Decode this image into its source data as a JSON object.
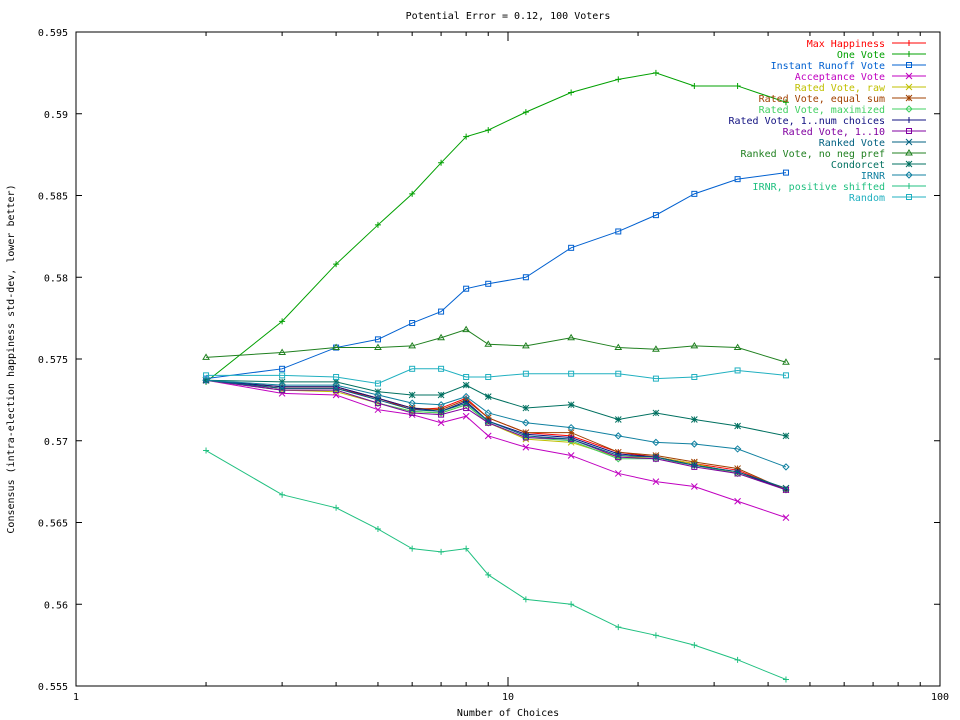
{
  "chart_data": {
    "type": "line",
    "title": "Potential Error = 0.12, 100 Voters",
    "xlabel": "Number of Choices",
    "ylabel": "Consensus (intra-election happiness std-dev, lower better)",
    "x_scale": "log",
    "xlim": [
      1,
      100
    ],
    "ylim": [
      0.555,
      0.595
    ],
    "x_ticks": [
      1,
      10,
      100
    ],
    "x_tick_labels": [
      "1",
      "10",
      "100"
    ],
    "y_ticks": [
      0.555,
      0.56,
      0.565,
      0.57,
      0.575,
      0.58,
      0.585,
      0.59,
      0.595
    ],
    "y_tick_labels": [
      "0.555",
      "0.56",
      "0.565",
      "0.57",
      "0.575",
      "0.58",
      "0.585",
      "0.59",
      "0.595"
    ],
    "grid": false,
    "legend_position": "top-right",
    "x": [
      2,
      3,
      4,
      5,
      6,
      7,
      8,
      9,
      11,
      14,
      18,
      22,
      27,
      34,
      44
    ],
    "series": [
      {
        "name": "Max Happiness",
        "color": "#ff0000",
        "marker": "plus",
        "values": [
          0.5737,
          0.5732,
          0.5732,
          0.5726,
          0.5719,
          0.572,
          0.5726,
          0.5714,
          0.5705,
          0.5703,
          0.5693,
          0.569,
          0.5686,
          0.5682,
          0.567
        ]
      },
      {
        "name": "One Vote",
        "color": "#00a000",
        "marker": "plus",
        "values": [
          0.5736,
          0.5773,
          0.5808,
          0.5832,
          0.5851,
          0.587,
          0.5886,
          0.589,
          0.5901,
          0.5913,
          0.5921,
          0.5925,
          0.5917,
          0.5917,
          0.5907
        ]
      },
      {
        "name": "Instant Runoff Vote",
        "color": "#0060d0",
        "marker": "square",
        "values": [
          0.5738,
          0.5744,
          0.5757,
          0.5762,
          0.5772,
          0.5779,
          0.5793,
          0.5796,
          0.58,
          0.5818,
          0.5828,
          0.5838,
          0.5851,
          0.586,
          0.5864
        ]
      },
      {
        "name": "Acceptance Vote",
        "color": "#c000c0",
        "marker": "x",
        "values": [
          0.5737,
          0.5729,
          0.5728,
          0.5719,
          0.5716,
          0.5711,
          0.5715,
          0.5703,
          0.5696,
          0.5691,
          0.568,
          0.5675,
          0.5672,
          0.5663,
          0.5653
        ]
      },
      {
        "name": "Rated Vote, raw",
        "color": "#c0c000",
        "marker": "x",
        "values": [
          0.5737,
          0.5731,
          0.573,
          0.5723,
          0.5718,
          0.5717,
          0.5722,
          0.5711,
          0.5701,
          0.5699,
          0.569,
          0.569,
          0.5686,
          0.568,
          0.5671
        ]
      },
      {
        "name": "Rated Vote, equal sum",
        "color": "#a04000",
        "marker": "star",
        "values": [
          0.5737,
          0.5733,
          0.5733,
          0.5726,
          0.572,
          0.5719,
          0.5725,
          0.5714,
          0.5705,
          0.5705,
          0.5693,
          0.5691,
          0.5687,
          0.5683,
          0.567
        ]
      },
      {
        "name": "Rated Vote, maximized",
        "color": "#40d060",
        "marker": "diamond",
        "values": [
          0.5737,
          0.5731,
          0.5731,
          0.5723,
          0.5718,
          0.5717,
          0.5722,
          0.5711,
          0.5702,
          0.57,
          0.5689,
          0.5689,
          0.5685,
          0.568,
          0.567
        ]
      },
      {
        "name": "Rated Vote, 1..num choices",
        "color": "#101080",
        "marker": "plus",
        "values": [
          0.5737,
          0.5733,
          0.5733,
          0.5726,
          0.572,
          0.5718,
          0.5724,
          0.5712,
          0.5704,
          0.5702,
          0.5692,
          0.569,
          0.5685,
          0.5681,
          0.567
        ]
      },
      {
        "name": "Rated Vote, 1..10",
        "color": "#8000a0",
        "marker": "square",
        "values": [
          0.5737,
          0.5731,
          0.5731,
          0.5723,
          0.5717,
          0.5716,
          0.572,
          0.5711,
          0.5702,
          0.5701,
          0.569,
          0.5689,
          0.5684,
          0.568,
          0.567
        ]
      },
      {
        "name": "Ranked Vote",
        "color": "#006080",
        "marker": "x",
        "values": [
          0.5737,
          0.5732,
          0.5732,
          0.5725,
          0.5719,
          0.5718,
          0.5723,
          0.5712,
          0.5703,
          0.5701,
          0.5691,
          0.569,
          0.5685,
          0.5681,
          0.5671
        ]
      },
      {
        "name": "Ranked Vote, no neg pref",
        "color": "#208020",
        "marker": "triangle",
        "values": [
          0.5751,
          0.5754,
          0.5757,
          0.5757,
          0.5758,
          0.5763,
          0.5768,
          0.5759,
          0.5758,
          0.5763,
          0.5757,
          0.5756,
          0.5758,
          0.5757,
          0.5748
        ]
      },
      {
        "name": "Condorcet",
        "color": "#007060",
        "marker": "star",
        "values": [
          0.5737,
          0.5736,
          0.5736,
          0.573,
          0.5728,
          0.5728,
          0.5734,
          0.5727,
          0.572,
          0.5722,
          0.5713,
          0.5717,
          0.5713,
          0.5709,
          0.5703
        ]
      },
      {
        "name": "IRNR",
        "color": "#1080a0",
        "marker": "diamond",
        "values": [
          0.5737,
          0.5734,
          0.5734,
          0.5728,
          0.5723,
          0.5722,
          0.5727,
          0.5717,
          0.5711,
          0.5708,
          0.5703,
          0.5699,
          0.5698,
          0.5695,
          0.5684
        ]
      },
      {
        "name": "IRNR, positive shifted",
        "color": "#20c080",
        "marker": "plus",
        "values": [
          0.5694,
          0.5667,
          0.5659,
          0.5646,
          0.5634,
          0.5632,
          0.5634,
          0.5618,
          0.5603,
          0.56,
          0.5586,
          0.5581,
          0.5575,
          0.5566,
          0.5554
        ]
      },
      {
        "name": "Random",
        "color": "#20b0c0",
        "marker": "square",
        "values": [
          0.574,
          0.574,
          0.5739,
          0.5735,
          0.5744,
          0.5744,
          0.5739,
          0.5739,
          0.5741,
          0.5741,
          0.5741,
          0.5738,
          0.5739,
          0.5743,
          0.574
        ]
      }
    ]
  }
}
